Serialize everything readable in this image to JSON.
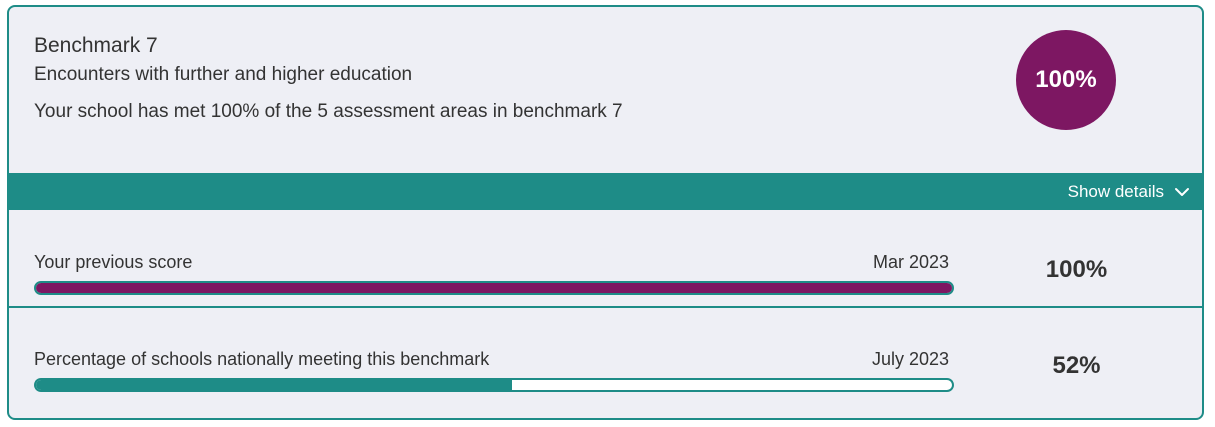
{
  "benchmark": {
    "title": "Benchmark 7",
    "subtitle": "Encounters with further and higher education",
    "summary": "Your school has met 100% of the 5 assessment areas in benchmark 7",
    "score": "100%"
  },
  "details": {
    "toggle_label": "Show details",
    "icon": "chevron-down-icon"
  },
  "rows": [
    {
      "label": "Your previous score",
      "date": "Mar 2023",
      "value": "100%",
      "progress": 1.0
    },
    {
      "label": "Percentage of schools nationally meeting this benchmark",
      "date": "July 2023",
      "value": "52%",
      "progress": 0.52
    }
  ],
  "colors": {
    "accent": "#1e8c87",
    "score": "#7d1762",
    "background": "#eeeff5"
  }
}
